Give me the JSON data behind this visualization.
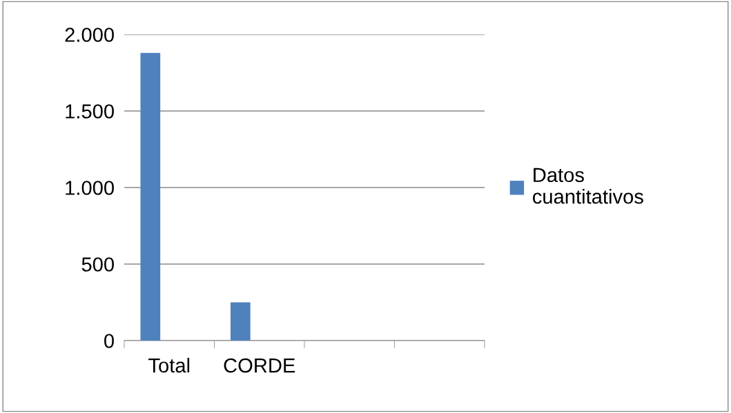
{
  "chart_data": {
    "type": "bar",
    "categories": [
      "Total",
      "CORDE",
      null,
      null
    ],
    "series": [
      {
        "name": "Datos cuantitativos",
        "color": "#4f81bd",
        "values": [
          1880,
          250,
          null,
          null
        ]
      }
    ],
    "ylim": [
      0,
      2000
    ],
    "yticks": [
      0,
      {
        "value": 500,
        "label": "500"
      },
      {
        "value": 1000,
        "label": "1.000"
      },
      {
        "value": 1500,
        "label": "1.500"
      },
      {
        "value": 2000,
        "label": "2.000"
      }
    ],
    "grid": "y",
    "legend": "right"
  }
}
